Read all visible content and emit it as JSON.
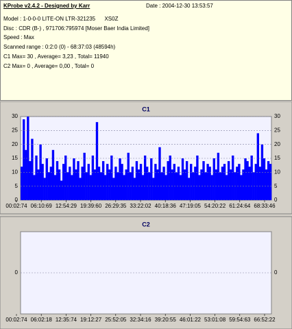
{
  "header": {
    "title": "KProbe v2.4.2 - Designed by Karr",
    "date": "Date : 2004-12-30 13:53:57",
    "lines": [
      "Model : 1-0-0-0 LITE-ON LTR-321235      XS0Z",
      "Disc : CDR (B-) , 971706:795974 [Moser Baer India Limited]",
      "Speed : Max",
      "Scanned range : 0:2:0 (0) - 68:37:03 (48594h)",
      "C1 Max= 30 , Average= 3,23 , Total= 11940",
      "C2 Max= 0 , Average= 0,00 , Total= 0"
    ]
  },
  "chart_data": [
    {
      "type": "bar",
      "title": "C1",
      "color": "#0000ff",
      "ylim": [
        0,
        30
      ],
      "yticks": [
        0,
        5,
        10,
        15,
        20,
        25,
        30
      ],
      "grid": true,
      "x_labels": [
        "00:02:74",
        "06:10:69",
        "12:54:29",
        "19:39:60",
        "26:29:35",
        "33:22:02",
        "40:18:36",
        "47:19:05",
        "54:20:22",
        "61:24:64",
        "68:33:46"
      ],
      "values": [
        12,
        29,
        18,
        30,
        14,
        22,
        9,
        16,
        11,
        20,
        13,
        8,
        15,
        10,
        12,
        18,
        9,
        14,
        11,
        7,
        13,
        16,
        10,
        12,
        9,
        15,
        11,
        14,
        8,
        12,
        17,
        10,
        13,
        9,
        16,
        11,
        28,
        12,
        10,
        14,
        9,
        13,
        11,
        16,
        8,
        12,
        10,
        15,
        13,
        9,
        11,
        17,
        10,
        12,
        8,
        14,
        11,
        13,
        9,
        16,
        12,
        10,
        15,
        8,
        13,
        11,
        19,
        10,
        12,
        9,
        14,
        16,
        11,
        13,
        10,
        12,
        9,
        15,
        11,
        14,
        8,
        13,
        10,
        12,
        16,
        9,
        11,
        14,
        10,
        13,
        12,
        9,
        15,
        11,
        17,
        10,
        12,
        13,
        9,
        14,
        11,
        16,
        10,
        12,
        13,
        9,
        11,
        15,
        14,
        12,
        16,
        10,
        13,
        24,
        12,
        20,
        15,
        11,
        14,
        13
      ]
    },
    {
      "type": "bar",
      "title": "C2",
      "color": "#0000ff",
      "ylim": [
        -1,
        1
      ],
      "yticks": [
        0
      ],
      "grid": true,
      "x_labels": [
        "00:02:74",
        "06:02:18",
        "12:35:74",
        "19:12:27",
        "25:52:05",
        "32:34:16",
        "39:20:55",
        "46:01:22",
        "53:01:08",
        "59:54:63",
        "66:52:22"
      ]
    }
  ]
}
